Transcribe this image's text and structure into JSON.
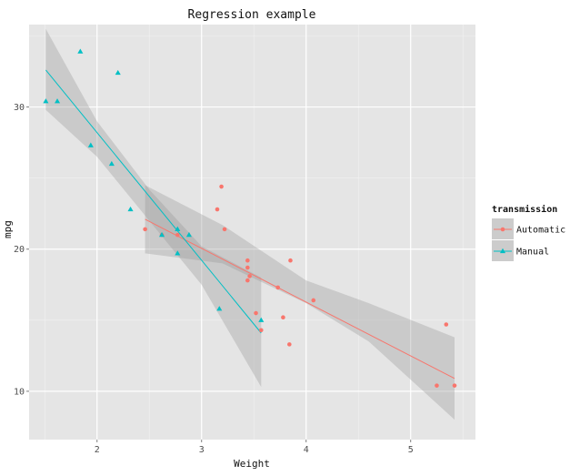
{
  "chart_data": {
    "type": "scatter",
    "title": "Regression example",
    "xlabel": "Weight",
    "ylabel": "mpg",
    "xlim": [
      1.35,
      5.62
    ],
    "ylim": [
      6.6,
      35.8
    ],
    "x_ticks": [
      2,
      3,
      4,
      5
    ],
    "y_ticks": [
      10,
      20,
      30
    ],
    "grid": true,
    "legend": {
      "title": "transmission",
      "placement": "right"
    },
    "series": [
      {
        "name": "Automatic",
        "color": "#f8766d",
        "marker": "circle",
        "points": [
          [
            2.46,
            21.4
          ],
          [
            2.62,
            21.0
          ],
          [
            2.77,
            21.0
          ],
          [
            3.15,
            22.8
          ],
          [
            3.19,
            24.4
          ],
          [
            3.22,
            21.4
          ],
          [
            3.44,
            18.7
          ],
          [
            3.44,
            19.2
          ],
          [
            3.44,
            17.8
          ],
          [
            3.46,
            18.1
          ],
          [
            3.52,
            15.5
          ],
          [
            3.57,
            14.3
          ],
          [
            3.73,
            17.3
          ],
          [
            3.78,
            15.2
          ],
          [
            3.84,
            13.3
          ],
          [
            3.85,
            19.2
          ],
          [
            4.07,
            16.4
          ],
          [
            5.25,
            10.4
          ],
          [
            5.34,
            14.7
          ],
          [
            5.42,
            10.4
          ]
        ],
        "fit": {
          "x": [
            2.46,
            5.42
          ],
          "y": [
            22.1,
            10.9
          ]
        },
        "band": {
          "x": [
            2.46,
            3.2,
            4.0,
            4.6,
            5.42
          ],
          "lower": [
            19.7,
            19.0,
            16.2,
            13.5,
            8.0
          ],
          "upper": [
            24.5,
            21.7,
            17.8,
            16.2,
            13.8
          ]
        }
      },
      {
        "name": "Manual",
        "color": "#00bfc4",
        "marker": "triangle",
        "points": [
          [
            1.51,
            30.4
          ],
          [
            1.62,
            30.4
          ],
          [
            1.84,
            33.9
          ],
          [
            1.94,
            27.3
          ],
          [
            2.14,
            26.0
          ],
          [
            2.2,
            32.4
          ],
          [
            2.32,
            22.8
          ],
          [
            2.62,
            21.0
          ],
          [
            2.77,
            21.4
          ],
          [
            2.77,
            19.7
          ],
          [
            2.88,
            21.0
          ],
          [
            3.17,
            15.8
          ],
          [
            3.57,
            15.0
          ]
        ],
        "fit": {
          "x": [
            1.51,
            3.57
          ],
          "y": [
            32.6,
            14.1
          ]
        },
        "band": {
          "x": [
            1.51,
            2.0,
            2.5,
            3.0,
            3.57
          ],
          "lower": [
            29.8,
            26.5,
            22.0,
            17.5,
            10.3
          ],
          "upper": [
            35.5,
            29.0,
            24.2,
            20.2,
            18.0
          ]
        }
      }
    ]
  }
}
